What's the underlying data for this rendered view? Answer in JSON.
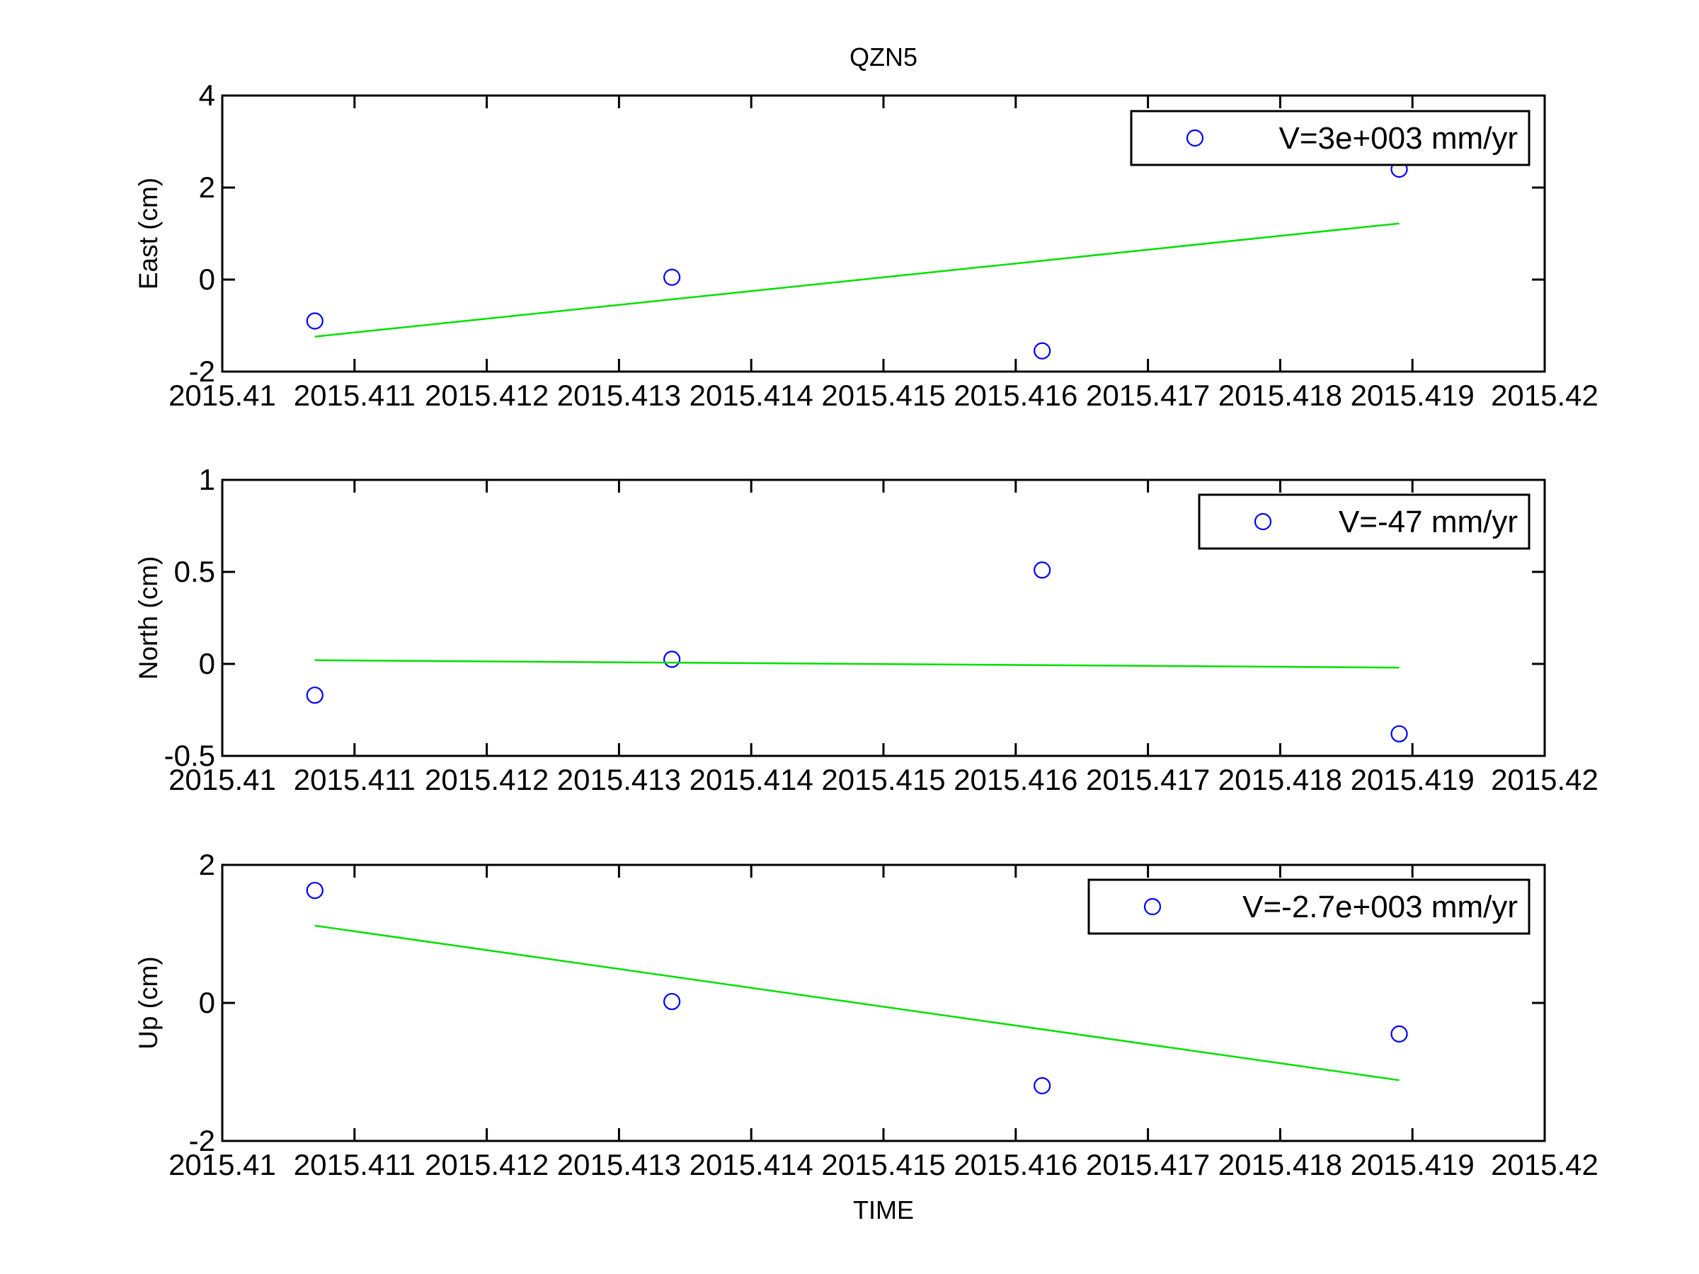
{
  "figure": {
    "title": "QZN5",
    "xlabel": "TIME"
  },
  "chart_data": [
    {
      "type": "scatter",
      "title": "QZN5",
      "xlabel": "",
      "ylabel": "East (cm)",
      "xlim": [
        2015.41,
        2015.42
      ],
      "ylim": [
        -2,
        4
      ],
      "xticks": [
        "2015.41",
        "2015.411",
        "2015.412",
        "2015.413",
        "2015.414",
        "2015.415",
        "2015.416",
        "2015.417",
        "2015.418",
        "2015.419",
        "2015.42"
      ],
      "yticks": [
        "-2",
        "0",
        "2",
        "4"
      ],
      "grid": false,
      "legend_position": "top-right",
      "series": [
        {
          "name": "V=3e+003 mm/yr",
          "kind": "scatter",
          "marker": "circle",
          "color": "#0000ff",
          "x": [
            2015.4107,
            2015.4134,
            2015.4162,
            2015.4189
          ],
          "y": [
            -0.9,
            0.05,
            -1.55,
            2.4
          ]
        },
        {
          "kind": "line",
          "color": "#00e000",
          "x": [
            2015.4107,
            2015.4189
          ],
          "y": [
            -1.24,
            1.22
          ]
        }
      ]
    },
    {
      "type": "scatter",
      "xlabel": "",
      "ylabel": "North (cm)",
      "xlim": [
        2015.41,
        2015.42
      ],
      "ylim": [
        -0.5,
        1
      ],
      "xticks": [
        "2015.41",
        "2015.411",
        "2015.412",
        "2015.413",
        "2015.414",
        "2015.415",
        "2015.416",
        "2015.417",
        "2015.418",
        "2015.419",
        "2015.42"
      ],
      "yticks": [
        "-0.5",
        "0",
        "0.5",
        "1"
      ],
      "grid": false,
      "legend_position": "top-right",
      "series": [
        {
          "name": "V=-47 mm/yr",
          "kind": "scatter",
          "marker": "circle",
          "color": "#0000ff",
          "x": [
            2015.4107,
            2015.4134,
            2015.4162,
            2015.4189
          ],
          "y": [
            -0.17,
            0.025,
            0.51,
            -0.38
          ]
        },
        {
          "kind": "line",
          "color": "#00e000",
          "x": [
            2015.4107,
            2015.4189
          ],
          "y": [
            0.02,
            -0.02
          ]
        }
      ]
    },
    {
      "type": "scatter",
      "xlabel": "TIME",
      "ylabel": "Up (cm)",
      "xlim": [
        2015.41,
        2015.42
      ],
      "ylim": [
        -2,
        2
      ],
      "xticks": [
        "2015.41",
        "2015.411",
        "2015.412",
        "2015.413",
        "2015.414",
        "2015.415",
        "2015.416",
        "2015.417",
        "2015.418",
        "2015.419",
        "2015.42"
      ],
      "yticks": [
        "-2",
        "0",
        "2"
      ],
      "grid": false,
      "legend_position": "top-right",
      "series": [
        {
          "name": "V=-2.7e+003 mm/yr",
          "kind": "scatter",
          "marker": "circle",
          "color": "#0000ff",
          "x": [
            2015.4107,
            2015.4134,
            2015.4162,
            2015.4189
          ],
          "y": [
            1.63,
            0.02,
            -1.2,
            -0.45
          ]
        },
        {
          "kind": "line",
          "color": "#00e000",
          "x": [
            2015.4107,
            2015.4189
          ],
          "y": [
            1.12,
            -1.12
          ]
        }
      ]
    }
  ]
}
